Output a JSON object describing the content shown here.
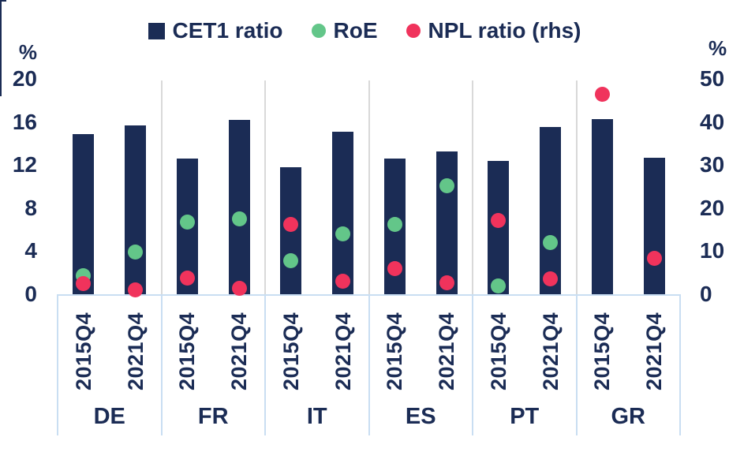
{
  "legend": {
    "items": [
      {
        "label": "CET1 ratio",
        "marker": "square",
        "color": "#1b2c55"
      },
      {
        "label": "RoE",
        "marker": "circle",
        "color": "#63c689"
      },
      {
        "label": "NPL ratio (rhs)",
        "marker": "circle",
        "color": "#f0335c"
      }
    ]
  },
  "axes": {
    "left": {
      "unit": "%",
      "ticks": [
        0,
        4,
        8,
        12,
        16,
        20
      ],
      "range": [
        0,
        20
      ]
    },
    "right": {
      "unit": "%",
      "ticks": [
        0,
        10,
        20,
        30,
        40,
        50
      ],
      "range": [
        0,
        50
      ]
    }
  },
  "chart_data": {
    "type": "bar",
    "title": "",
    "categories": [
      "DE",
      "FR",
      "IT",
      "ES",
      "PT",
      "GR"
    ],
    "subcategories": [
      "2015Q4",
      "2021Q4"
    ],
    "legend_position": "top",
    "grid": "vertical-group-separators-only",
    "ylim_left": [
      0,
      20
    ],
    "ylim_right": [
      0,
      50
    ],
    "xlabel": "",
    "ylabel_left": "%",
    "ylabel_right": "%",
    "series": [
      {
        "name": "CET1 ratio",
        "type": "bar",
        "axis": "left",
        "color": "#1b2c55",
        "values": [
          [
            14.9,
            15.7
          ],
          [
            12.6,
            16.2
          ],
          [
            11.8,
            15.1
          ],
          [
            12.6,
            13.3
          ],
          [
            12.4,
            15.5
          ],
          [
            16.3,
            12.7
          ]
        ]
      },
      {
        "name": "RoE",
        "type": "scatter",
        "axis": "left",
        "color": "#63c689",
        "values": [
          [
            1.7,
            3.9
          ],
          [
            6.7,
            7.0
          ],
          [
            3.1,
            5.6
          ],
          [
            6.5,
            10.1
          ],
          [
            0.8,
            4.8
          ],
          [
            null,
            null
          ]
        ]
      },
      {
        "name": "NPL ratio (rhs)",
        "type": "scatter",
        "axis": "right",
        "color": "#f0335c",
        "values": [
          [
            2.5,
            1.0
          ],
          [
            3.7,
            1.3
          ],
          [
            16.2,
            3.1
          ],
          [
            6.0,
            2.6
          ],
          [
            17.2,
            3.5
          ],
          [
            46.5,
            8.4
          ]
        ]
      }
    ]
  },
  "colors": {
    "bar_navy": "#1b2c55",
    "roe_green": "#63c689",
    "npl_red": "#f0335c",
    "text_navy": "#1b2c55",
    "group_separator_grey": "#d9d9d9",
    "axis_light_blue": "#c9def2",
    "background": "#ffffff"
  }
}
